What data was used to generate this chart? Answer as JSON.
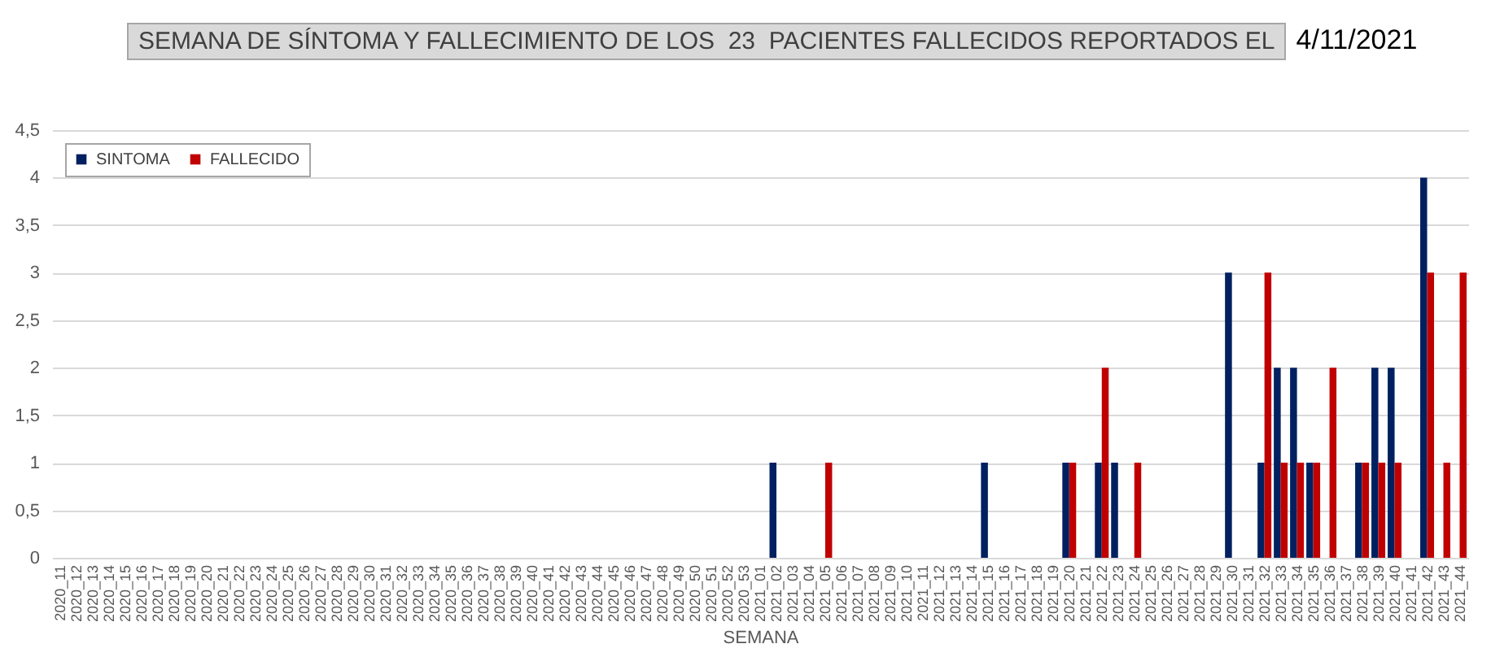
{
  "chart_data": {
    "type": "bar",
    "title": "SEMANA DE SÍNTOMA Y FALLECIMIENTO DE LOS  23  PACIENTES FALLECIDOS REPORTADOS EL",
    "annotations": [
      "4/11/2021"
    ],
    "xlabel": "SEMANA",
    "categories": [
      "2020_11",
      "2020_12",
      "2020_13",
      "2020_14",
      "2020_15",
      "2020_16",
      "2020_17",
      "2020_18",
      "2020_19",
      "2020_20",
      "2020_21",
      "2020_22",
      "2020_23",
      "2020_24",
      "2020_25",
      "2020_26",
      "2020_27",
      "2020_28",
      "2020_29",
      "2020_30",
      "2020_31",
      "2020_32",
      "2020_33",
      "2020_34",
      "2020_35",
      "2020_36",
      "2020_37",
      "2020_38",
      "2020_39",
      "2020_40",
      "2020_41",
      "2020_42",
      "2020_43",
      "2020_44",
      "2020_45",
      "2020_46",
      "2020_47",
      "2020_48",
      "2020_49",
      "2020_50",
      "2020_51",
      "2020_52",
      "2020_53",
      "2021_01",
      "2021_02",
      "2021_03",
      "2021_04",
      "2021_05",
      "2021_06",
      "2021_07",
      "2021_08",
      "2021_09",
      "2021_10",
      "2021_11",
      "2021_12",
      "2021_13",
      "2021_14",
      "2021_15",
      "2021_16",
      "2021_17",
      "2021_18",
      "2021_19",
      "2021_20",
      "2021_21",
      "2021_22",
      "2021_23",
      "2021_24",
      "2021_25",
      "2021_26",
      "2021_27",
      "2021_28",
      "2021_29",
      "2021_30",
      "2021_31",
      "2021_32",
      "2021_33",
      "2021_34",
      "2021_35",
      "2021_36",
      "2021_37",
      "2021_38",
      "2021_39",
      "2021_40",
      "2021_41",
      "2021_42",
      "2021_43",
      "2021_44"
    ],
    "series": [
      {
        "name": "SINTOMA",
        "color": "#002060",
        "values": [
          0,
          0,
          0,
          0,
          0,
          0,
          0,
          0,
          0,
          0,
          0,
          0,
          0,
          0,
          0,
          0,
          0,
          0,
          0,
          0,
          0,
          0,
          0,
          0,
          0,
          0,
          0,
          0,
          0,
          0,
          0,
          0,
          0,
          0,
          0,
          0,
          0,
          0,
          0,
          0,
          0,
          0,
          0,
          0,
          1,
          0,
          0,
          0,
          0,
          0,
          0,
          0,
          0,
          0,
          0,
          0,
          0,
          1,
          0,
          0,
          0,
          0,
          1,
          0,
          1,
          1,
          0,
          0,
          0,
          0,
          0,
          0,
          3,
          0,
          1,
          2,
          2,
          1,
          0,
          0,
          1,
          2,
          2,
          0,
          4,
          0,
          0
        ]
      },
      {
        "name": "FALLECIDO",
        "color": "#c00000",
        "values": [
          0,
          0,
          0,
          0,
          0,
          0,
          0,
          0,
          0,
          0,
          0,
          0,
          0,
          0,
          0,
          0,
          0,
          0,
          0,
          0,
          0,
          0,
          0,
          0,
          0,
          0,
          0,
          0,
          0,
          0,
          0,
          0,
          0,
          0,
          0,
          0,
          0,
          0,
          0,
          0,
          0,
          0,
          0,
          0,
          0,
          0,
          0,
          1,
          0,
          0,
          0,
          0,
          0,
          0,
          0,
          0,
          0,
          0,
          0,
          0,
          0,
          0,
          1,
          0,
          2,
          0,
          1,
          0,
          0,
          0,
          0,
          0,
          0,
          0,
          3,
          1,
          1,
          1,
          2,
          0,
          1,
          1,
          1,
          0,
          3,
          1,
          3
        ]
      }
    ],
    "ylim": [
      0,
      4.5
    ],
    "yticks": [
      0,
      {
        "value": 0.5,
        "label": "0,5"
      },
      1,
      {
        "value": 1.5,
        "label": "1,5"
      },
      2,
      {
        "value": 2.5,
        "label": "2,5"
      },
      3,
      {
        "value": 3.5,
        "label": "3,5"
      },
      4,
      {
        "value": 4.5,
        "label": "4,5"
      }
    ],
    "grid": "y",
    "legend": "top left"
  }
}
